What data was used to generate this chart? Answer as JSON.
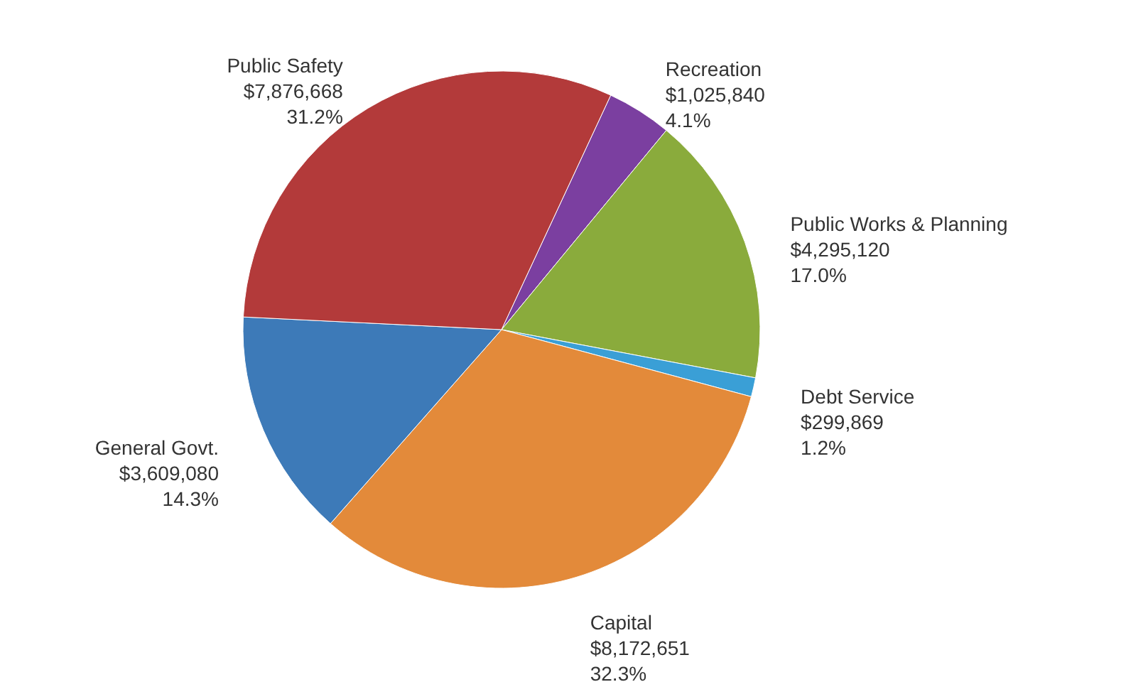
{
  "chart_data": {
    "type": "pie",
    "categories": [
      "Recreation",
      "Public Works & Planning",
      "Debt Service",
      "Capital",
      "General Govt.",
      "Public Safety"
    ],
    "values": [
      1025840,
      4295120,
      299869,
      8172651,
      3609080,
      7876668
    ],
    "value_labels": [
      "$1,025,840\n4.1%",
      "$4,295,120\n17.0%",
      "$299,869\n1.2%",
      "$8,172,651\n32.3%",
      "$3,609,080\n14.3%",
      "$7,876,668\n31.2%"
    ],
    "colors": [
      "#7b3fa0",
      "#8aab3c",
      "#3a9fd6",
      "#e38a3a",
      "#3d7ab8",
      "#b33a3a"
    ]
  }
}
